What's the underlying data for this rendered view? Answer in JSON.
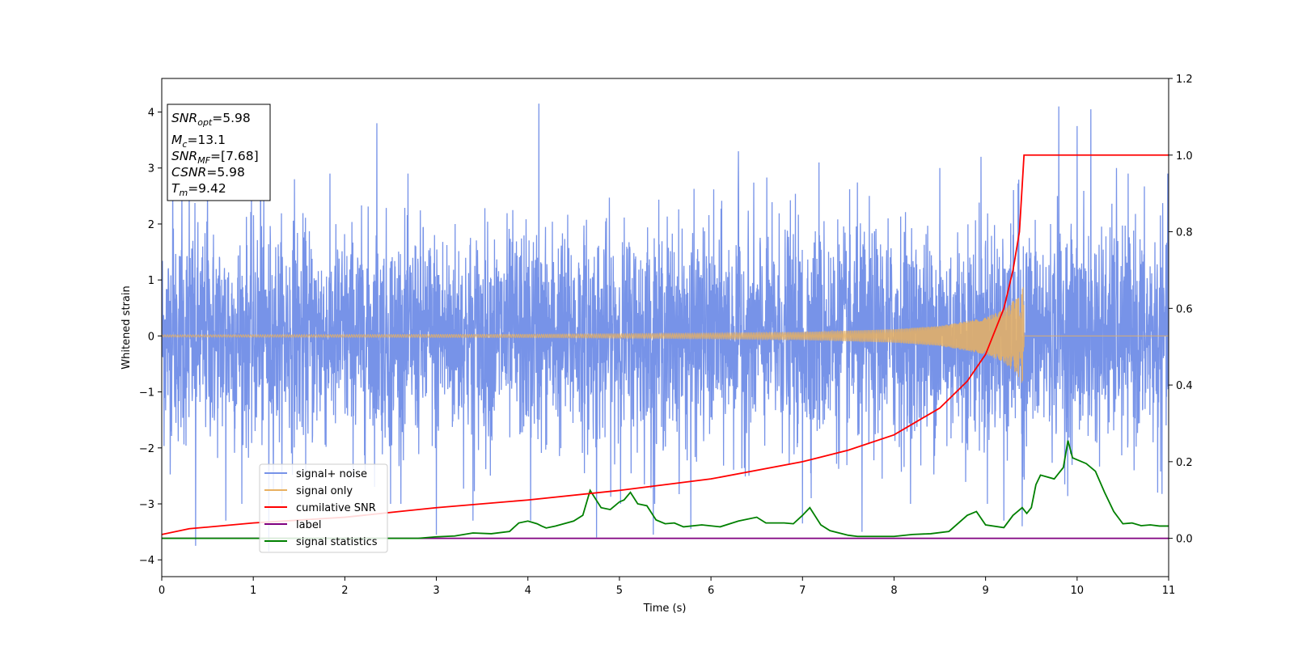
{
  "chart_data": {
    "type": "line",
    "title": "",
    "xlabel": "Time (s)",
    "ylabel": "Whitened strain",
    "y2label": "",
    "xlim": [
      0,
      11
    ],
    "ylim": [
      -4.3,
      4.6
    ],
    "y2lim": [
      -0.1,
      1.2
    ],
    "xticks": [
      0,
      1,
      2,
      3,
      4,
      5,
      6,
      7,
      8,
      9,
      10,
      11
    ],
    "yticks": [
      -4,
      -3,
      -2,
      -1,
      0,
      1,
      2,
      3,
      4
    ],
    "y2ticks": [
      0.0,
      0.2,
      0.4,
      0.6,
      0.8,
      1.0,
      1.2
    ],
    "grid": false,
    "legend_position": "lower-left",
    "annotation": {
      "snr_opt_label": "SNR",
      "snr_opt_sub": "opt",
      "snr_opt_value": "=5.98",
      "mc_label": "M",
      "mc_sub": "c",
      "mc_value": "=13.1",
      "snr_mf_label": "SNR",
      "snr_mf_sub": "MF",
      "snr_mf_value": "=[7.68]",
      "csnr_label": "CSNR",
      "csnr_value": "=5.98",
      "tm_label": "T",
      "tm_sub": "m",
      "tm_value": "=9.42"
    },
    "series": [
      {
        "name": "signal+ noise",
        "axis": "left",
        "color": "#7793e8",
        "description": "whitened strain: Gaussian noise (std ~1) plus the chirp signal",
        "noise_std": 1.0,
        "envelope": {
          "upper": 2.6,
          "lower": -2.6
        },
        "spikes": [
          {
            "x": 0.12,
            "y": 3.2
          },
          {
            "x": 0.22,
            "y": 2.7
          },
          {
            "x": 0.3,
            "y": 3.0
          },
          {
            "x": 0.37,
            "y": -3.75
          },
          {
            "x": 0.5,
            "y": 2.9
          },
          {
            "x": 0.7,
            "y": -3.3
          },
          {
            "x": 1.08,
            "y": 4.1
          },
          {
            "x": 1.17,
            "y": -3.85
          },
          {
            "x": 1.45,
            "y": 2.8
          },
          {
            "x": 2.35,
            "y": 3.8
          },
          {
            "x": 2.5,
            "y": -3.0
          },
          {
            "x": 3.0,
            "y": -3.55
          },
          {
            "x": 3.4,
            "y": -3.3
          },
          {
            "x": 4.03,
            "y": -3.3
          },
          {
            "x": 4.12,
            "y": 4.15
          },
          {
            "x": 4.75,
            "y": -3.6
          },
          {
            "x": 5.37,
            "y": -3.55
          },
          {
            "x": 5.78,
            "y": -3.45
          },
          {
            "x": 6.3,
            "y": 3.3
          },
          {
            "x": 7.0,
            "y": -3.35
          },
          {
            "x": 7.18,
            "y": 3.1
          },
          {
            "x": 7.65,
            "y": -3.5
          },
          {
            "x": 8.5,
            "y": 3.0
          },
          {
            "x": 8.95,
            "y": 3.2
          },
          {
            "x": 9.2,
            "y": -3.3
          },
          {
            "x": 9.4,
            "y": -3.4
          },
          {
            "x": 9.8,
            "y": 4.1
          },
          {
            "x": 10.0,
            "y": 3.75
          },
          {
            "x": 10.15,
            "y": 4.05
          },
          {
            "x": 10.43,
            "y": 3.0
          },
          {
            "x": 10.88,
            "y": -2.8
          }
        ]
      },
      {
        "name": "signal only",
        "axis": "left",
        "color": "#e8b060",
        "description": "chirp waveform, amplitude grows until merger then zero",
        "merger_time": 9.42,
        "amplitude_points": [
          {
            "x": 0,
            "y": 0.02
          },
          {
            "x": 4,
            "y": 0.03
          },
          {
            "x": 6,
            "y": 0.05
          },
          {
            "x": 7,
            "y": 0.07
          },
          {
            "x": 8,
            "y": 0.12
          },
          {
            "x": 8.5,
            "y": 0.18
          },
          {
            "x": 9.0,
            "y": 0.33
          },
          {
            "x": 9.2,
            "y": 0.48
          },
          {
            "x": 9.35,
            "y": 0.7
          },
          {
            "x": 9.42,
            "y": 0.92
          }
        ]
      },
      {
        "name": "cumilative SNR",
        "axis": "right",
        "color": "#ff0000",
        "points": [
          {
            "x": 0.0,
            "y": 0.01
          },
          {
            "x": 0.3,
            "y": 0.025
          },
          {
            "x": 1.0,
            "y": 0.04
          },
          {
            "x": 2.0,
            "y": 0.055
          },
          {
            "x": 3.0,
            "y": 0.08
          },
          {
            "x": 4.0,
            "y": 0.1
          },
          {
            "x": 5.0,
            "y": 0.125
          },
          {
            "x": 6.0,
            "y": 0.155
          },
          {
            "x": 7.0,
            "y": 0.2
          },
          {
            "x": 7.5,
            "y": 0.23
          },
          {
            "x": 8.0,
            "y": 0.27
          },
          {
            "x": 8.5,
            "y": 0.34
          },
          {
            "x": 8.8,
            "y": 0.41
          },
          {
            "x": 9.0,
            "y": 0.48
          },
          {
            "x": 9.2,
            "y": 0.6
          },
          {
            "x": 9.3,
            "y": 0.7
          },
          {
            "x": 9.37,
            "y": 0.8
          },
          {
            "x": 9.42,
            "y": 1.0
          },
          {
            "x": 11.0,
            "y": 1.0
          }
        ]
      },
      {
        "name": "label",
        "axis": "right",
        "color": "#800080",
        "points": [
          {
            "x": 0,
            "y": 0.0
          },
          {
            "x": 11,
            "y": 0.0
          }
        ]
      },
      {
        "name": "signal statistics",
        "axis": "right",
        "color": "#008000",
        "points": [
          {
            "x": 0.0,
            "y": 0.0
          },
          {
            "x": 1.0,
            "y": 0.0
          },
          {
            "x": 2.0,
            "y": 0.0
          },
          {
            "x": 2.8,
            "y": 0.0
          },
          {
            "x": 3.0,
            "y": 0.004
          },
          {
            "x": 3.2,
            "y": 0.006
          },
          {
            "x": 3.4,
            "y": 0.014
          },
          {
            "x": 3.6,
            "y": 0.012
          },
          {
            "x": 3.8,
            "y": 0.018
          },
          {
            "x": 3.9,
            "y": 0.04
          },
          {
            "x": 4.0,
            "y": 0.045
          },
          {
            "x": 4.1,
            "y": 0.038
          },
          {
            "x": 4.15,
            "y": 0.032
          },
          {
            "x": 4.2,
            "y": 0.027
          },
          {
            "x": 4.3,
            "y": 0.032
          },
          {
            "x": 4.5,
            "y": 0.045
          },
          {
            "x": 4.6,
            "y": 0.06
          },
          {
            "x": 4.68,
            "y": 0.125
          },
          {
            "x": 4.8,
            "y": 0.08
          },
          {
            "x": 4.9,
            "y": 0.075
          },
          {
            "x": 5.0,
            "y": 0.095
          },
          {
            "x": 5.05,
            "y": 0.1
          },
          {
            "x": 5.12,
            "y": 0.12
          },
          {
            "x": 5.2,
            "y": 0.09
          },
          {
            "x": 5.3,
            "y": 0.085
          },
          {
            "x": 5.4,
            "y": 0.048
          },
          {
            "x": 5.5,
            "y": 0.038
          },
          {
            "x": 5.6,
            "y": 0.04
          },
          {
            "x": 5.7,
            "y": 0.03
          },
          {
            "x": 5.9,
            "y": 0.035
          },
          {
            "x": 6.1,
            "y": 0.03
          },
          {
            "x": 6.3,
            "y": 0.045
          },
          {
            "x": 6.5,
            "y": 0.055
          },
          {
            "x": 6.6,
            "y": 0.04
          },
          {
            "x": 6.8,
            "y": 0.04
          },
          {
            "x": 6.9,
            "y": 0.038
          },
          {
            "x": 7.0,
            "y": 0.06
          },
          {
            "x": 7.08,
            "y": 0.08
          },
          {
            "x": 7.2,
            "y": 0.035
          },
          {
            "x": 7.3,
            "y": 0.02
          },
          {
            "x": 7.5,
            "y": 0.008
          },
          {
            "x": 7.6,
            "y": 0.005
          },
          {
            "x": 7.8,
            "y": 0.005
          },
          {
            "x": 8.0,
            "y": 0.005
          },
          {
            "x": 8.2,
            "y": 0.01
          },
          {
            "x": 8.4,
            "y": 0.012
          },
          {
            "x": 8.6,
            "y": 0.018
          },
          {
            "x": 8.8,
            "y": 0.06
          },
          {
            "x": 8.9,
            "y": 0.07
          },
          {
            "x": 9.0,
            "y": 0.035
          },
          {
            "x": 9.2,
            "y": 0.028
          },
          {
            "x": 9.3,
            "y": 0.06
          },
          {
            "x": 9.4,
            "y": 0.08
          },
          {
            "x": 9.45,
            "y": 0.065
          },
          {
            "x": 9.5,
            "y": 0.08
          },
          {
            "x": 9.55,
            "y": 0.14
          },
          {
            "x": 9.6,
            "y": 0.165
          },
          {
            "x": 9.75,
            "y": 0.155
          },
          {
            "x": 9.8,
            "y": 0.17
          },
          {
            "x": 9.85,
            "y": 0.185
          },
          {
            "x": 9.9,
            "y": 0.255
          },
          {
            "x": 9.95,
            "y": 0.21
          },
          {
            "x": 10.1,
            "y": 0.195
          },
          {
            "x": 10.2,
            "y": 0.175
          },
          {
            "x": 10.3,
            "y": 0.12
          },
          {
            "x": 10.4,
            "y": 0.07
          },
          {
            "x": 10.5,
            "y": 0.038
          },
          {
            "x": 10.6,
            "y": 0.04
          },
          {
            "x": 10.7,
            "y": 0.033
          },
          {
            "x": 10.8,
            "y": 0.035
          },
          {
            "x": 10.9,
            "y": 0.032
          },
          {
            "x": 11.0,
            "y": 0.032
          }
        ]
      }
    ]
  }
}
